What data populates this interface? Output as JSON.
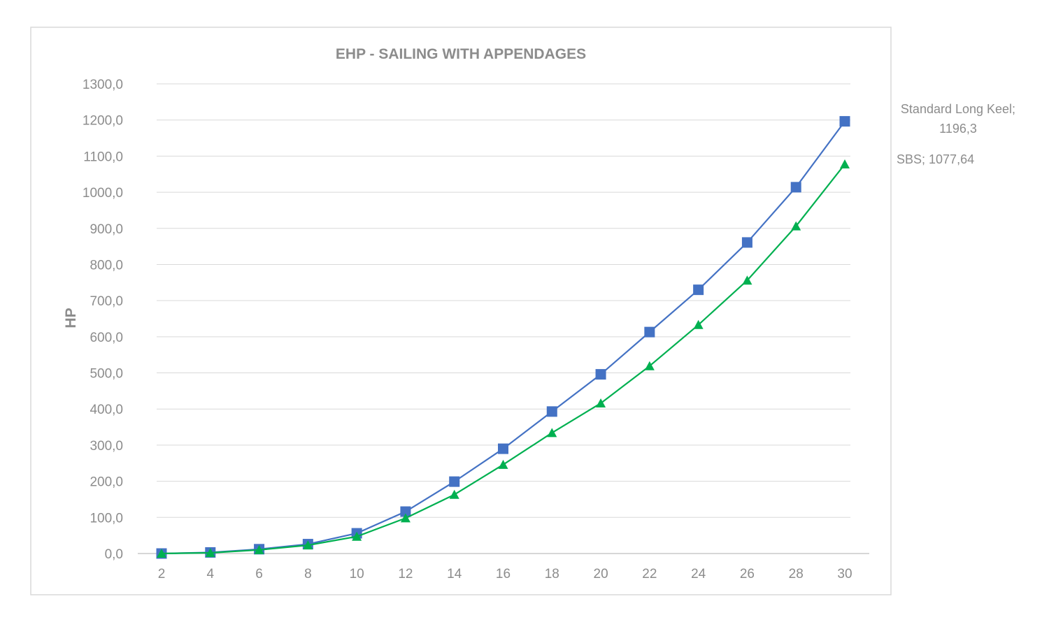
{
  "chart_data": {
    "type": "line",
    "title": "EHP - SAILING WITH APPENDAGES",
    "xlabel": "",
    "ylabel": "HP",
    "x": [
      2,
      4,
      6,
      8,
      10,
      12,
      14,
      16,
      18,
      20,
      22,
      24,
      26,
      28,
      30
    ],
    "x_tick_labels": [
      "2",
      "4",
      "6",
      "8",
      "10",
      "12",
      "14",
      "16",
      "18",
      "20",
      "22",
      "24",
      "26",
      "28",
      "30"
    ],
    "ylim": [
      0,
      1300
    ],
    "y_ticks": [
      0,
      100,
      200,
      300,
      400,
      500,
      600,
      700,
      800,
      900,
      1000,
      1100,
      1200,
      1300
    ],
    "y_tick_labels": [
      "0,0",
      "100,0",
      "200,0",
      "300,0",
      "400,0",
      "500,0",
      "600,0",
      "700,0",
      "800,0",
      "900,0",
      "1000,0",
      "1100,0",
      "1200,0",
      "1300,0"
    ],
    "grid": true,
    "legend": "none",
    "series": [
      {
        "name": "Standard Long Keel",
        "color": "#4472c4",
        "marker": "square",
        "values": [
          0,
          3,
          12,
          26,
          56,
          116,
          199,
          290,
          393,
          496,
          613,
          730,
          861,
          1014,
          1196.3
        ]
      },
      {
        "name": "SBS",
        "color": "#00b050",
        "marker": "triangle",
        "values": [
          0,
          2,
          10,
          23,
          47,
          98,
          163,
          246,
          334,
          416,
          519,
          633,
          756,
          906,
          1077.64
        ]
      }
    ],
    "annotations": [
      {
        "series": "Standard Long Keel",
        "line1": "Standard Long Keel;",
        "line2": "1196,3"
      },
      {
        "series": "SBS",
        "line1": "SBS; 1077,64"
      }
    ]
  }
}
